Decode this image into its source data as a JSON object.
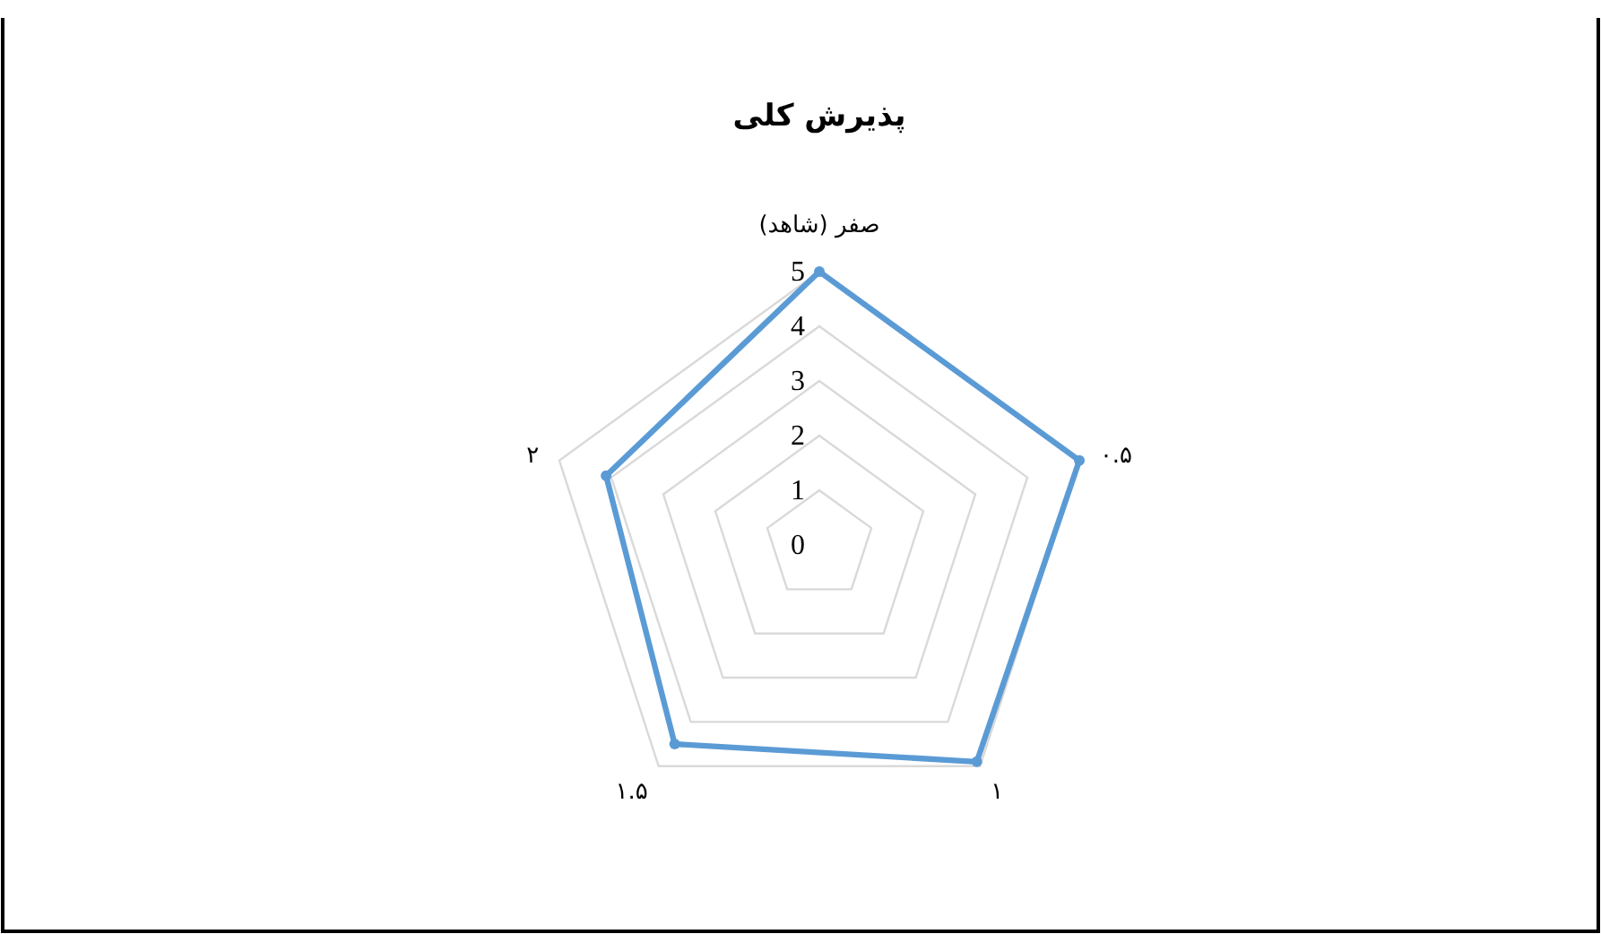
{
  "chart_data": {
    "type": "radar",
    "title": "پذیرش کلی",
    "categories": [
      "صفر (شاهد)",
      "۰.۵",
      "۱",
      "۱.۵",
      "۲"
    ],
    "series": [
      {
        "color": "#5b9bd5",
        "values": [
          5,
          5,
          4.9,
          4.5,
          4.1
        ]
      }
    ],
    "ylim": [
      0,
      5
    ],
    "yticks": [
      0,
      1,
      2,
      3,
      4,
      5
    ],
    "grid": true,
    "marker": "circle"
  }
}
